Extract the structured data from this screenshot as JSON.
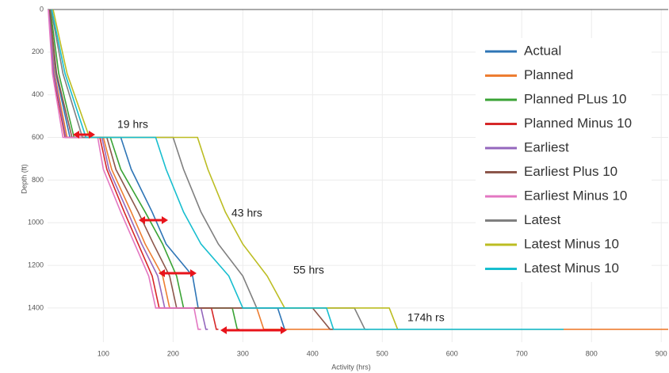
{
  "chart_data": {
    "type": "line",
    "step": true,
    "x_label": "Activity (hrs)",
    "y_label": "Depth (ft)",
    "xlim": [
      20,
      910
    ],
    "ylim": [
      0,
      1560
    ],
    "y_inverted": true,
    "xticks": [
      100,
      200,
      300,
      400,
      500,
      600,
      700,
      800,
      900
    ],
    "yticks": [
      0,
      200,
      400,
      600,
      800,
      1000,
      1200,
      1400
    ],
    "grid": true,
    "legend_position": "right",
    "annotations": [
      "19 hrs",
      "43 hrs",
      "55 hrs",
      "174h rs"
    ],
    "series": [
      {
        "name": "Actual",
        "color": "#2e75b6",
        "x": [
          22,
          32,
          52,
          125,
          140,
          170,
          190,
          228,
          236,
          350,
          360,
          362
        ],
        "values": [
          0,
          300,
          600,
          600,
          750,
          950,
          1100,
          1250,
          1400,
          1400,
          1500,
          1500
        ]
      },
      {
        "name": "Planned",
        "color": "#ed7d31",
        "x": [
          22,
          30,
          48,
          100,
          112,
          140,
          160,
          185,
          195,
          320,
          330,
          910
        ],
        "values": [
          0,
          300,
          600,
          600,
          750,
          950,
          1100,
          1250,
          1400,
          1400,
          1500,
          1500
        ]
      },
      {
        "name": "Planned PLus 10",
        "color": "#3aa335",
        "x": [
          24,
          36,
          58,
          110,
          125,
          160,
          185,
          205,
          215,
          285,
          292,
          295
        ],
        "values": [
          0,
          300,
          600,
          600,
          750,
          950,
          1100,
          1250,
          1400,
          1400,
          1500,
          1500
        ]
      },
      {
        "name": "Planned Minus 10",
        "color": "#d62728",
        "x": [
          22,
          28,
          45,
          95,
          105,
          130,
          150,
          170,
          180,
          255,
          262,
          265
        ],
        "values": [
          0,
          300,
          600,
          600,
          750,
          950,
          1100,
          1250,
          1400,
          1400,
          1500,
          1500
        ]
      },
      {
        "name": "Earliest",
        "color": "#9467bd",
        "x": [
          22,
          29,
          46,
          98,
          108,
          135,
          155,
          178,
          188,
          240,
          247,
          250
        ],
        "values": [
          0,
          300,
          600,
          600,
          750,
          950,
          1100,
          1250,
          1400,
          1400,
          1500,
          1500
        ]
      },
      {
        "name": "Earliest Plus 10",
        "color": "#8c564b",
        "x": [
          23,
          33,
          55,
          105,
          118,
          150,
          172,
          195,
          205,
          400,
          425,
          430
        ],
        "values": [
          0,
          300,
          600,
          600,
          750,
          950,
          1100,
          1250,
          1400,
          1400,
          1500,
          1500
        ]
      },
      {
        "name": "Earliest Minus 10",
        "color": "#e377c2",
        "x": [
          21,
          27,
          42,
          92,
          100,
          125,
          145,
          165,
          175,
          230,
          236,
          240
        ],
        "values": [
          0,
          300,
          600,
          600,
          750,
          950,
          1100,
          1250,
          1400,
          1400,
          1500,
          1500
        ]
      },
      {
        "name": "Latest",
        "color": "#7f7f7f",
        "x": [
          25,
          42,
          70,
          200,
          215,
          240,
          265,
          300,
          320,
          460,
          475,
          480
        ],
        "values": [
          0,
          300,
          600,
          600,
          750,
          950,
          1100,
          1250,
          1400,
          1400,
          1500,
          1500
        ]
      },
      {
        "name": "Latest Minus 10",
        "color": "#bcbd22",
        "x": [
          28,
          48,
          80,
          235,
          250,
          275,
          300,
          335,
          360,
          510,
          522,
          525
        ],
        "values": [
          0,
          300,
          600,
          600,
          750,
          950,
          1100,
          1250,
          1400,
          1400,
          1500,
          1500
        ]
      },
      {
        "name": "Latest Minus 10",
        "color": "#17becf",
        "x": [
          26,
          45,
          75,
          175,
          190,
          215,
          240,
          280,
          300,
          420,
          430,
          760
        ],
        "values": [
          0,
          300,
          600,
          600,
          750,
          950,
          1100,
          1250,
          1400,
          1400,
          1500,
          1500
        ]
      }
    ]
  }
}
